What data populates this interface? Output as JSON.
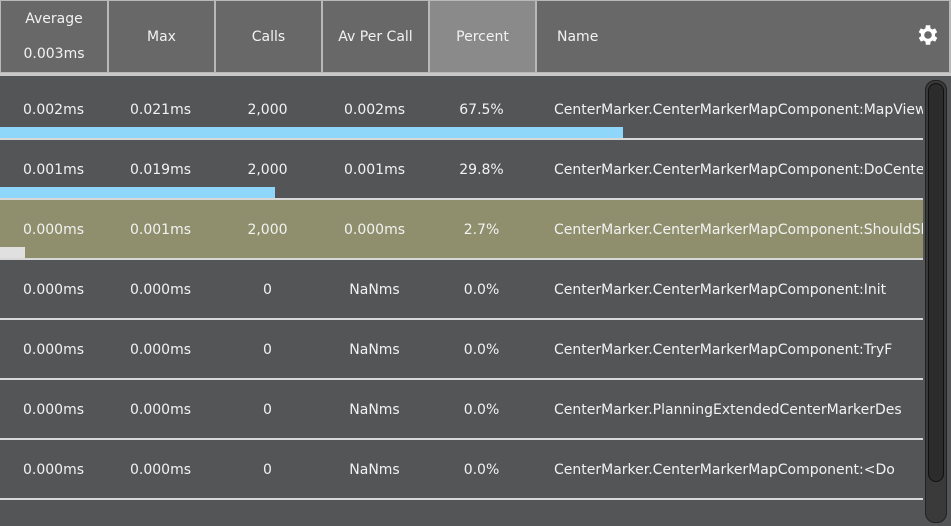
{
  "header": {
    "columns": {
      "average": {
        "label": "Average",
        "total": "0.003ms"
      },
      "max": "Max",
      "calls": "Calls",
      "av_per_call": "Av Per Call",
      "percent": "Percent",
      "name": "Name"
    },
    "settings_icon": "gear-icon",
    "active_sort_column": "Percent"
  },
  "colors": {
    "bar": "#8fd6fb",
    "bar_highlight": "#e0e0e0",
    "highlight_row": "#8f8f6e"
  },
  "rows": [
    {
      "average": "0.002ms",
      "max": "0.021ms",
      "calls": "2,000",
      "av_per_call": "0.002ms",
      "percent": "67.5%",
      "percent_value": 67.5,
      "name": "CenterMarker.CenterMarkerMapComponent:MapViewChanged",
      "highlighted": false
    },
    {
      "average": "0.001ms",
      "max": "0.019ms",
      "calls": "2,000",
      "av_per_call": "0.001ms",
      "percent": "29.8%",
      "percent_value": 29.8,
      "name": "CenterMarker.CenterMarkerMapComponent:DoCenterMarker",
      "highlighted": false
    },
    {
      "average": "0.000ms",
      "max": "0.001ms",
      "calls": "2,000",
      "av_per_call": "0.000ms",
      "percent": "2.7%",
      "percent_value": 2.7,
      "name": "CenterMarker.CenterMarkerMapComponent:ShouldShow",
      "highlighted": true
    },
    {
      "average": "0.000ms",
      "max": "0.000ms",
      "calls": "0",
      "av_per_call": "NaNms",
      "percent": "0.0%",
      "percent_value": 0,
      "name": "CenterMarker.CenterMarkerMapComponent:Init",
      "highlighted": false
    },
    {
      "average": "0.000ms",
      "max": "0.000ms",
      "calls": "0",
      "av_per_call": "NaNms",
      "percent": "0.0%",
      "percent_value": 0,
      "name": "CenterMarker.CenterMarkerMapComponent:TryF",
      "highlighted": false
    },
    {
      "average": "0.000ms",
      "max": "0.000ms",
      "calls": "0",
      "av_per_call": "NaNms",
      "percent": "0.0%",
      "percent_value": 0,
      "name": "CenterMarker.PlanningExtendedCenterMarkerDes",
      "highlighted": false
    },
    {
      "average": "0.000ms",
      "max": "0.000ms",
      "calls": "0",
      "av_per_call": "NaNms",
      "percent": "0.0%",
      "percent_value": 0,
      "name": "CenterMarker.CenterMarkerMapComponent:<Do",
      "highlighted": false
    }
  ],
  "scrollbar": {
    "visible_fraction": 0.91,
    "position": 0
  }
}
